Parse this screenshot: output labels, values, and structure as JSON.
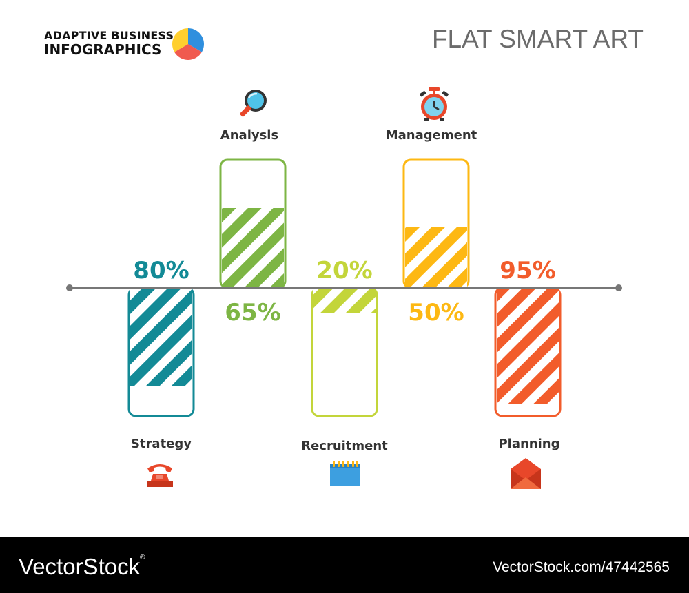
{
  "header": {
    "brand_line1": "ADAPTIVE BUSINESS",
    "brand_line2": "INFOGRAPHICS",
    "title": "FLAT SMART ART",
    "logo_colors": [
      "#2f8fde",
      "#f05a4f",
      "#ffcf2e"
    ]
  },
  "chart_data": {
    "type": "bar",
    "categories": [
      "Strategy",
      "Analysis",
      "Recruitment",
      "Management",
      "Planning"
    ],
    "values": [
      80,
      65,
      20,
      50,
      95
    ],
    "value_labels": [
      "80%",
      "65%",
      "20%",
      "50%",
      "95%"
    ],
    "direction": [
      "down",
      "up",
      "down",
      "up",
      "down"
    ],
    "colors": [
      "#138a96",
      "#7db544",
      "#c3d53a",
      "#fdb813",
      "#f25c2b"
    ],
    "icons": [
      "telephone-icon",
      "magnifier-icon",
      "calendar-icon",
      "alarm-clock-icon",
      "envelope-icon"
    ],
    "ylim": [
      0,
      100
    ],
    "fill_style": "diagonal-stripes"
  },
  "footer": {
    "left": "VectorStock",
    "left_mark": "®",
    "right": "VectorStock.com/47442565"
  }
}
